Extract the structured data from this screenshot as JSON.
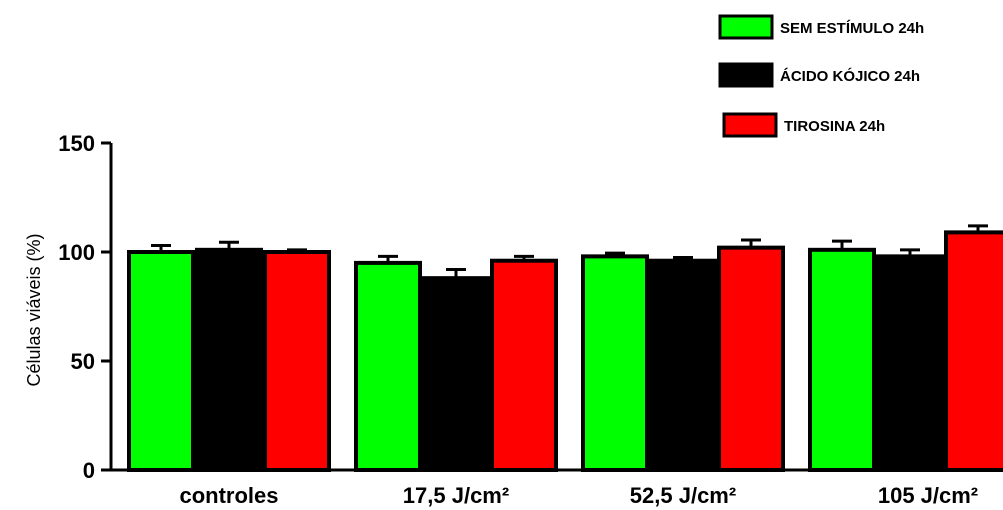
{
  "chart_data": {
    "type": "bar",
    "ylabel": "Células viáveis (%)",
    "xlabel": "",
    "ylim": [
      0,
      150
    ],
    "yticks": [
      0,
      50,
      100,
      150
    ],
    "categories": [
      "controles",
      "17,5 J/cm²",
      "52,5 J/cm²",
      "105 J/cm²"
    ],
    "series": [
      {
        "name": "SEM ESTÍMULO 24h",
        "color": "#00ff00",
        "values": [
          100,
          95,
          98,
          101
        ],
        "errors": [
          3,
          3,
          1.5,
          4
        ]
      },
      {
        "name": "ÁCIDO KÓJICO 24h",
        "color": "#000000",
        "values": [
          101,
          88,
          96,
          98
        ],
        "errors": [
          3.5,
          4,
          1.5,
          3
        ]
      },
      {
        "name": "TIROSINA 24h",
        "color": "#ff0000",
        "values": [
          100,
          96,
          102,
          109
        ],
        "errors": [
          1,
          2,
          3.5,
          3
        ]
      }
    ],
    "legend_position": "top-right",
    "grid": false
  }
}
